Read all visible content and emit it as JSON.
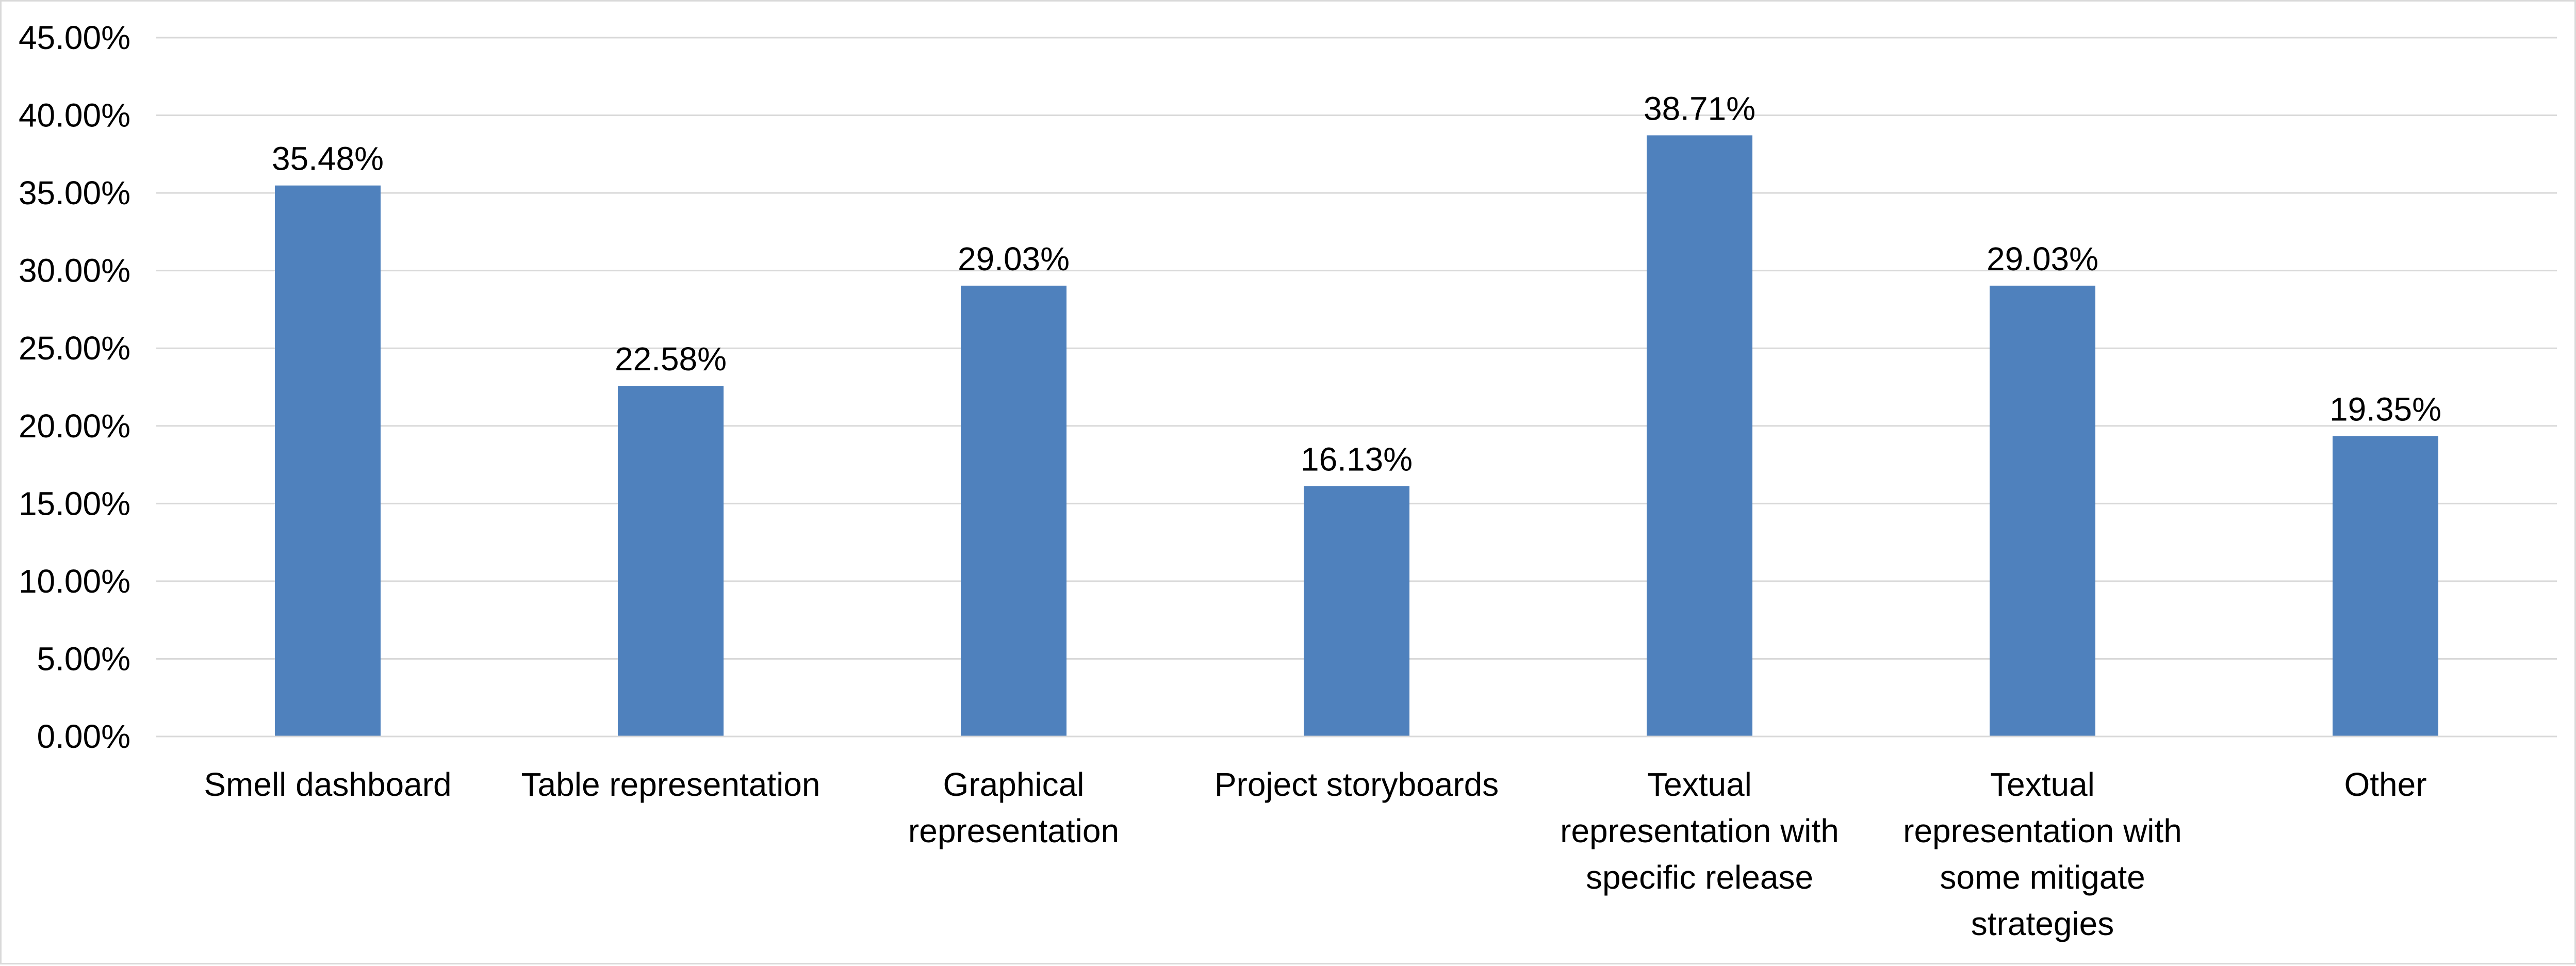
{
  "chart_data": {
    "type": "bar",
    "title": "",
    "xlabel": "",
    "ylabel": "",
    "categories": [
      "Smell dashboard",
      "Table representation",
      "Graphical representation",
      "Project storyboards",
      "Textual representation with specific release",
      "Textual representation with some mitigate strategies",
      "Other"
    ],
    "category_lines": [
      [
        "Smell dashboard"
      ],
      [
        "Table representation"
      ],
      [
        "Graphical",
        "representation"
      ],
      [
        "Project storyboards"
      ],
      [
        "Textual",
        "representation with",
        "specific release"
      ],
      [
        "Textual",
        "representation with",
        "some mitigate",
        "strategies"
      ],
      [
        "Other"
      ]
    ],
    "values": [
      35.48,
      22.58,
      29.03,
      16.13,
      38.71,
      29.03,
      19.35
    ],
    "data_labels": [
      "35.48%",
      "22.58%",
      "29.03%",
      "16.13%",
      "38.71%",
      "29.03%",
      "19.35%"
    ],
    "ylim": [
      0,
      45
    ],
    "y_ticks": [
      0,
      5,
      10,
      15,
      20,
      25,
      30,
      35,
      40,
      45
    ],
    "y_tick_labels": [
      "0.00%",
      "5.00%",
      "10.00%",
      "15.00%",
      "20.00%",
      "25.00%",
      "30.00%",
      "35.00%",
      "40.00%",
      "45.00%"
    ],
    "grid": true,
    "legend": "none",
    "colors": {
      "bar": "#4f81bd",
      "grid": "#d9d9d9",
      "axis": "#d9d9d9"
    }
  }
}
